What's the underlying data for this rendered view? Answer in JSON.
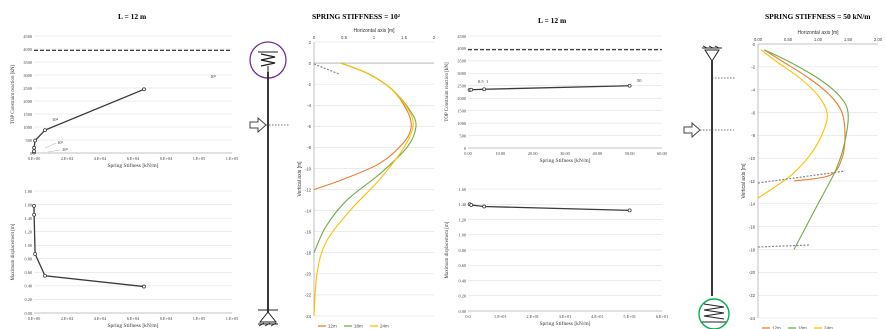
{
  "titles": {
    "a": "L = 12 m",
    "b": "SPRING STIFFNESS = 10²",
    "c": "L = 12 m",
    "d": "SPRING STIFFNESS = 50 kN/m"
  },
  "colors": {
    "black_line": "#3a3a3a",
    "dashed": "#222222",
    "grid": "#d9d9d9",
    "s12": "#ed7d31",
    "s18": "#70ad47",
    "s24": "#ffc000",
    "circle_purple": "#7030a0",
    "circle_green": "#00b050"
  },
  "chart_data": [
    {
      "id": "a1",
      "type": "line",
      "xlabel": "Spring Stifness [kN/m]",
      "ylabel": "TOP Constraint reaction [kN]",
      "xlim": [
        0,
        180000
      ],
      "ylim": [
        0,
        4500
      ],
      "xticks": [
        "0.E+00",
        "2.E+04",
        "4.E+04",
        "6.E+04",
        "8.E+04",
        "1.E+05",
        "1.E+05"
      ],
      "yticks": [
        "0",
        "500",
        "1000",
        "1500",
        "2000",
        "2500",
        "3000",
        "3500",
        "4000",
        "4500"
      ],
      "series": [
        {
          "x": [
            1,
            10,
            100,
            1000,
            10000,
            100000
          ],
          "y": [
            20,
            70,
            200,
            480,
            880,
            2450
          ]
        }
      ],
      "reference_line": 3950,
      "point_labels": [
        "10²",
        "10³",
        "10⁴",
        "10⁵"
      ]
    },
    {
      "id": "a2",
      "type": "line",
      "xlabel": "Spring Stifness [kN/m]",
      "ylabel": "Maximum displacement [m]",
      "xlim": [
        0,
        180000
      ],
      "ylim": [
        0,
        1.8
      ],
      "xticks": [
        "0.E+00",
        "2.E+04",
        "4.E+04",
        "6.E+04",
        "8.E+04",
        "1.E+05",
        "1.E+05"
      ],
      "yticks": [
        "0.00",
        "0.20",
        "0.40",
        "0.60",
        "0.80",
        "1.00",
        "1.20",
        "1.40",
        "1.60",
        "1.80"
      ],
      "series": [
        {
          "x": [
            1,
            100,
            1000,
            10000,
            100000
          ],
          "y": [
            1.58,
            1.45,
            0.87,
            0.55,
            0.39
          ]
        }
      ]
    },
    {
      "id": "b",
      "type": "line",
      "xlabel": "Horizontal axis [m]",
      "ylabel": "Vertical axis [m]",
      "xlim": [
        0,
        2
      ],
      "ylim": [
        -24,
        2
      ],
      "xticks": [
        "0",
        "0.5",
        "1",
        "1.5",
        "2"
      ],
      "yticks": [
        "2",
        "0",
        "-2",
        "-4",
        "-6",
        "-8",
        "-10",
        "-12",
        "-14",
        "-16",
        "-18",
        "-20",
        "-22",
        "-24"
      ],
      "series": [
        {
          "name": "12m",
          "x": [
            0.45,
            0.9,
            1.3,
            1.55,
            1.62,
            1.5,
            1.1,
            0.5,
            0.0
          ],
          "y": [
            0,
            -1,
            -2.5,
            -4.5,
            -6,
            -7.5,
            -9.5,
            -11,
            -12
          ]
        },
        {
          "name": "18m",
          "x": [
            0.45,
            0.9,
            1.3,
            1.6,
            1.7,
            1.55,
            1.1,
            0.55,
            0.2,
            0.0
          ],
          "y": [
            0,
            -1,
            -2.5,
            -4.5,
            -6,
            -8,
            -10.5,
            -13,
            -15.5,
            -18
          ]
        },
        {
          "name": "24m",
          "x": [
            0.45,
            0.9,
            1.3,
            1.58,
            1.65,
            1.5,
            1.1,
            0.6,
            0.2,
            0.05,
            0.0
          ],
          "y": [
            0,
            -1,
            -2.5,
            -4.5,
            -6,
            -8,
            -11,
            -14,
            -17,
            -20,
            -24
          ]
        }
      ],
      "legend": [
        "12m",
        "18m",
        "24m"
      ],
      "legend_position": "bottom"
    },
    {
      "id": "c1",
      "type": "line",
      "xlabel": "Spring Stifness [kN/m]",
      "ylabel": "TOP Constraint reaction [kN]",
      "xlim": [
        0,
        60
      ],
      "ylim": [
        0,
        4500
      ],
      "xticks": [
        "0.00",
        "10.00",
        "20.00",
        "30.00",
        "40.00",
        "50.00",
        "60.00"
      ],
      "yticks": [
        "0",
        "500",
        "1000",
        "1500",
        "2000",
        "2500",
        "3000",
        "3500",
        "4000",
        "4500"
      ],
      "series": [
        {
          "x": [
            0.5,
            1,
            5,
            50
          ],
          "y": [
            2330,
            2340,
            2360,
            2500
          ]
        }
      ],
      "reference_line": 3950,
      "point_labels": [
        "0.5",
        "1",
        "50"
      ]
    },
    {
      "id": "c2",
      "type": "line",
      "xlabel": "Spring Stifness [kN/m]",
      "ylabel": "Maximum displacement [m]",
      "xlim": [
        0,
        60
      ],
      "ylim": [
        0,
        1.6
      ],
      "xticks": [
        "0.0",
        "1.E+01",
        "2.E+01",
        "3.E+01",
        "4.E+01",
        "5.E+01",
        "6.E+01"
      ],
      "yticks": [
        "0.00",
        "0.20",
        "0.40",
        "0.60",
        "0.80",
        "1.00",
        "1.20",
        "1.40",
        "1.60"
      ],
      "series": [
        {
          "x": [
            0.5,
            1,
            5,
            50
          ],
          "y": [
            1.4,
            1.39,
            1.37,
            1.32
          ]
        }
      ]
    },
    {
      "id": "d",
      "type": "line",
      "xlabel": "Horizontal axis [m]",
      "ylabel": "Vertical axis [m]",
      "xlim": [
        0,
        2
      ],
      "ylim": [
        -24,
        0
      ],
      "xticks": [
        "0.00",
        "0.50",
        "1.00",
        "1.50",
        "2.00"
      ],
      "yticks": [
        "0",
        "-2",
        "-4",
        "-6",
        "-8",
        "-10",
        "-12",
        "-14",
        "-16",
        "-18",
        "-20",
        "-22",
        "-24"
      ],
      "series": [
        {
          "name": "12m",
          "x": [
            0.1,
            0.4,
            0.85,
            1.2,
            1.4,
            1.45,
            1.4,
            1.2,
            0.6
          ],
          "y": [
            -0.5,
            -1.5,
            -3,
            -4.5,
            -6,
            -8,
            -10,
            -11.5,
            -12
          ]
        },
        {
          "name": "18m",
          "x": [
            0.1,
            0.5,
            1.0,
            1.35,
            1.5,
            1.45,
            1.3,
            1.0,
            0.7,
            0.6
          ],
          "y": [
            -0.5,
            -1.5,
            -3,
            -4.5,
            -6,
            -8.5,
            -11,
            -14,
            -17,
            -18
          ]
        },
        {
          "name": "24m",
          "x": [
            0.05,
            0.3,
            0.7,
            1.0,
            1.15,
            1.1,
            0.9,
            0.55,
            0.0
          ],
          "y": [
            -0.5,
            -1.5,
            -3,
            -4.5,
            -6,
            -7.5,
            -9.5,
            -11.5,
            -13.5
          ]
        }
      ],
      "legend": [
        "12m",
        "18m",
        "24m"
      ],
      "legend_position": "bottom"
    }
  ]
}
